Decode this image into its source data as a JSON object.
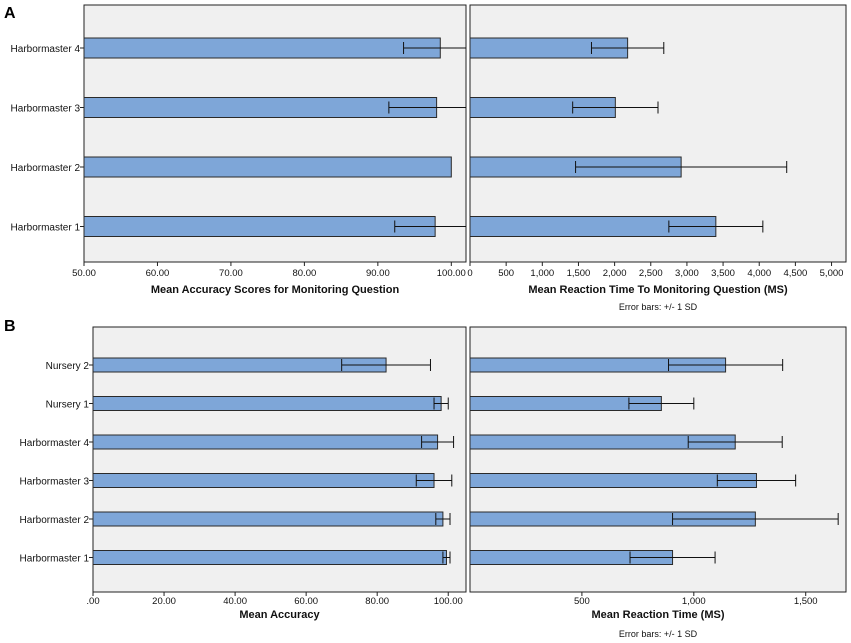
{
  "chart_data": [
    {
      "panel_label": "A",
      "type": "bar",
      "orientation": "horizontal",
      "categories": [
        "Harbormaster 4",
        "Harbormaster 3",
        "Harbormaster 2",
        "Harbormaster 1"
      ],
      "values": [
        98.5,
        98.0,
        100.0,
        97.8
      ],
      "errors": [
        5.0,
        6.5,
        0.0,
        5.5
      ],
      "xlabel": "Mean Accuracy Scores for Monitoring Question",
      "xlim": [
        50,
        102
      ],
      "xticks": [
        50,
        60,
        70,
        80,
        90,
        100
      ],
      "xtick_labels": [
        "50.00",
        "60.00",
        "70.00",
        "80.00",
        "90.00",
        "100.00"
      ],
      "bar_color": "#7ea6d8"
    },
    {
      "panel_label": "",
      "type": "bar",
      "orientation": "horizontal",
      "categories": [
        "Harbormaster 4",
        "Harbormaster 3",
        "Harbormaster 2",
        "Harbormaster 1"
      ],
      "values": [
        2180,
        2010,
        2920,
        3400
      ],
      "errors": [
        500,
        590,
        1460,
        650
      ],
      "xlabel": "Mean Reaction Time To Monitoring Question (MS)",
      "xlim": [
        0,
        5200
      ],
      "xticks": [
        0,
        500,
        1000,
        1500,
        2000,
        2500,
        3000,
        3500,
        4000,
        4500,
        5000
      ],
      "xtick_labels": [
        "0",
        "500",
        "1,000",
        "1,500",
        "2,000",
        "2,500",
        "3,000",
        "3,500",
        "4,000",
        "4,500",
        "5,000"
      ],
      "note": "Error bars: +/- 1 SD",
      "bar_color": "#7ea6d8"
    },
    {
      "panel_label": "B",
      "type": "bar",
      "orientation": "horizontal",
      "categories": [
        "Nursery 2",
        "Nursery 1",
        "Harbormaster 4",
        "Harbormaster 3",
        "Harbormaster 2",
        "Harbormaster 1"
      ],
      "values": [
        82.5,
        98.0,
        97.0,
        96.0,
        98.5,
        99.5
      ],
      "errors": [
        12.5,
        2.0,
        4.5,
        5.0,
        2.0,
        1.0
      ],
      "xlabel": "Mean Accuracy",
      "xlim": [
        0,
        105
      ],
      "xticks": [
        0,
        20,
        40,
        60,
        80,
        100
      ],
      "xtick_labels": [
        ".00",
        "20.00",
        "40.00",
        "60.00",
        "80.00",
        "100.00"
      ],
      "bar_color": "#7ea6d8"
    },
    {
      "panel_label": "",
      "type": "bar",
      "orientation": "horizontal",
      "categories": [
        "Nursery 2",
        "Nursery 1",
        "Harbormaster 4",
        "Harbormaster 3",
        "Harbormaster 2",
        "Harbormaster 1"
      ],
      "values": [
        1142,
        855,
        1185,
        1280,
        1275,
        905
      ],
      "errors": [
        255,
        145,
        210,
        175,
        370,
        190
      ],
      "xlabel": "Mean Reaction Time (MS)",
      "xlim": [
        0,
        1680
      ],
      "xticks": [
        500,
        1000,
        1500
      ],
      "xtick_labels": [
        "500",
        "1,000",
        "1,500"
      ],
      "note": "Error bars: +/- 1 SD",
      "bar_color": "#7ea6d8"
    }
  ],
  "colors": {
    "plot_bg": "#f0f0f0",
    "bar": "#7ea6d8",
    "bar_stroke": "#2a2a2a",
    "axis": "#222222"
  }
}
